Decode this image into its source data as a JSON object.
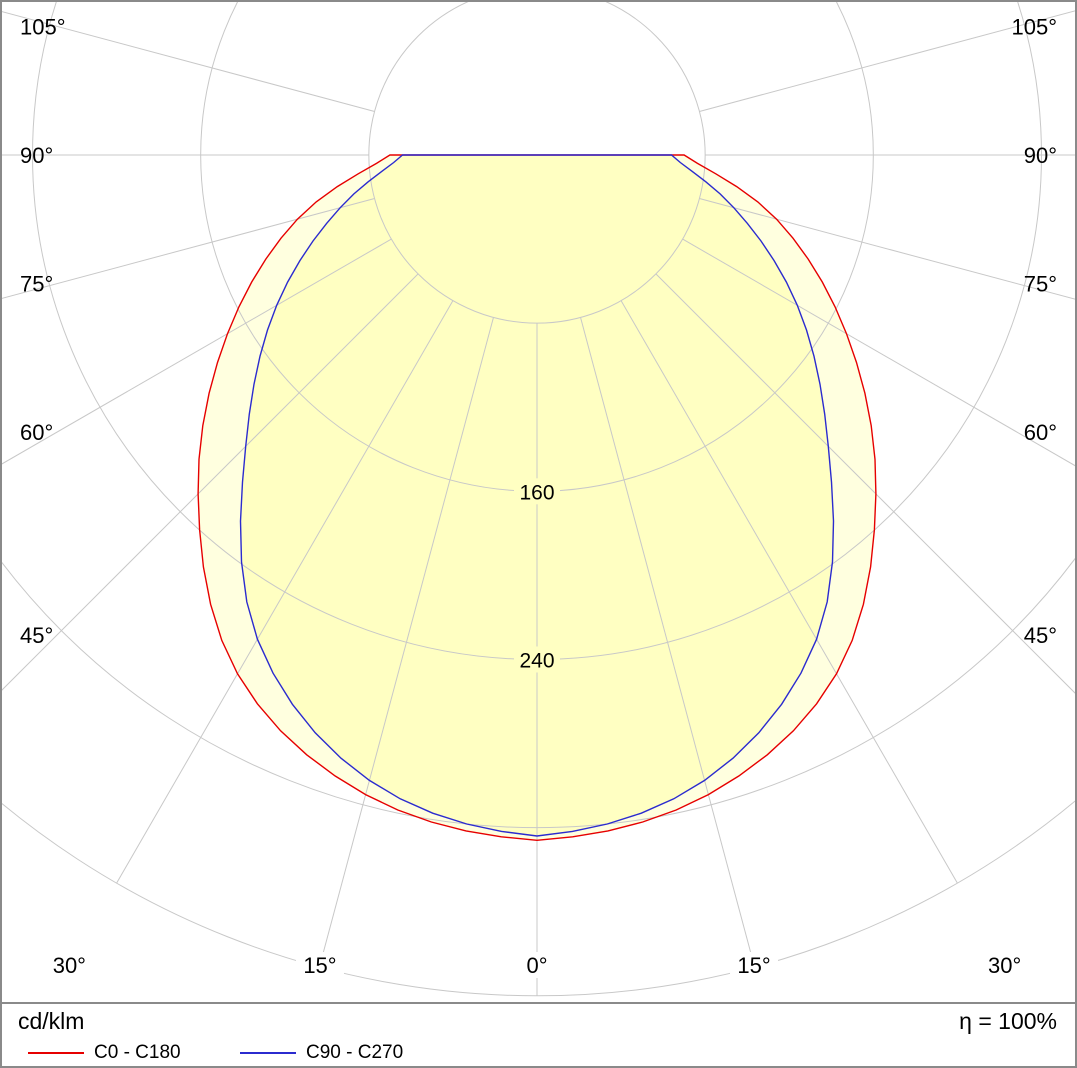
{
  "chart_data": {
    "type": "polar",
    "units": "cd/klm",
    "efficiency": "η = 100%",
    "gamma_deg": [
      0,
      15,
      30,
      45,
      60,
      75,
      90
    ],
    "series": [
      {
        "name": "C0 - C180",
        "color": "#e60000",
        "values": [
          326,
          315,
          285,
          228,
          170,
          118,
          70
        ]
      },
      {
        "name": "C90 - C270",
        "color": "#2b2bcf",
        "values": [
          324,
          308,
          266,
          196,
          143,
          97,
          64
        ]
      }
    ],
    "rings": [
      80,
      160,
      240,
      320,
      400
    ],
    "ring_labels": [
      "160",
      "240"
    ],
    "ring_label_values": [
      160,
      240
    ],
    "side_labels": [
      {
        "deg": 105,
        "label": "105°"
      },
      {
        "deg": 90,
        "label": "90°"
      },
      {
        "deg": 75,
        "label": "75°"
      },
      {
        "deg": 60,
        "label": "60°"
      },
      {
        "deg": 45,
        "label": "45°"
      }
    ],
    "bottom_labels": [
      {
        "deg": -30,
        "label": "30°"
      },
      {
        "deg": -15,
        "label": "15°"
      },
      {
        "deg": 0,
        "label": "0°"
      },
      {
        "deg": 15,
        "label": "15°"
      },
      {
        "deg": 30,
        "label": "30°"
      }
    ],
    "grid": {
      "color": "#c8c8c8",
      "angle_step_deg": 15
    },
    "fill": {
      "outer": "#ffffdf",
      "inner": "#ffffc2"
    }
  },
  "footer": {
    "units": "cd/klm",
    "efficiency": "η = 100%",
    "legend": [
      {
        "label": "C0 - C180",
        "color": "#e60000"
      },
      {
        "label": "C90 - C270",
        "color": "#2b2bcf"
      }
    ]
  }
}
